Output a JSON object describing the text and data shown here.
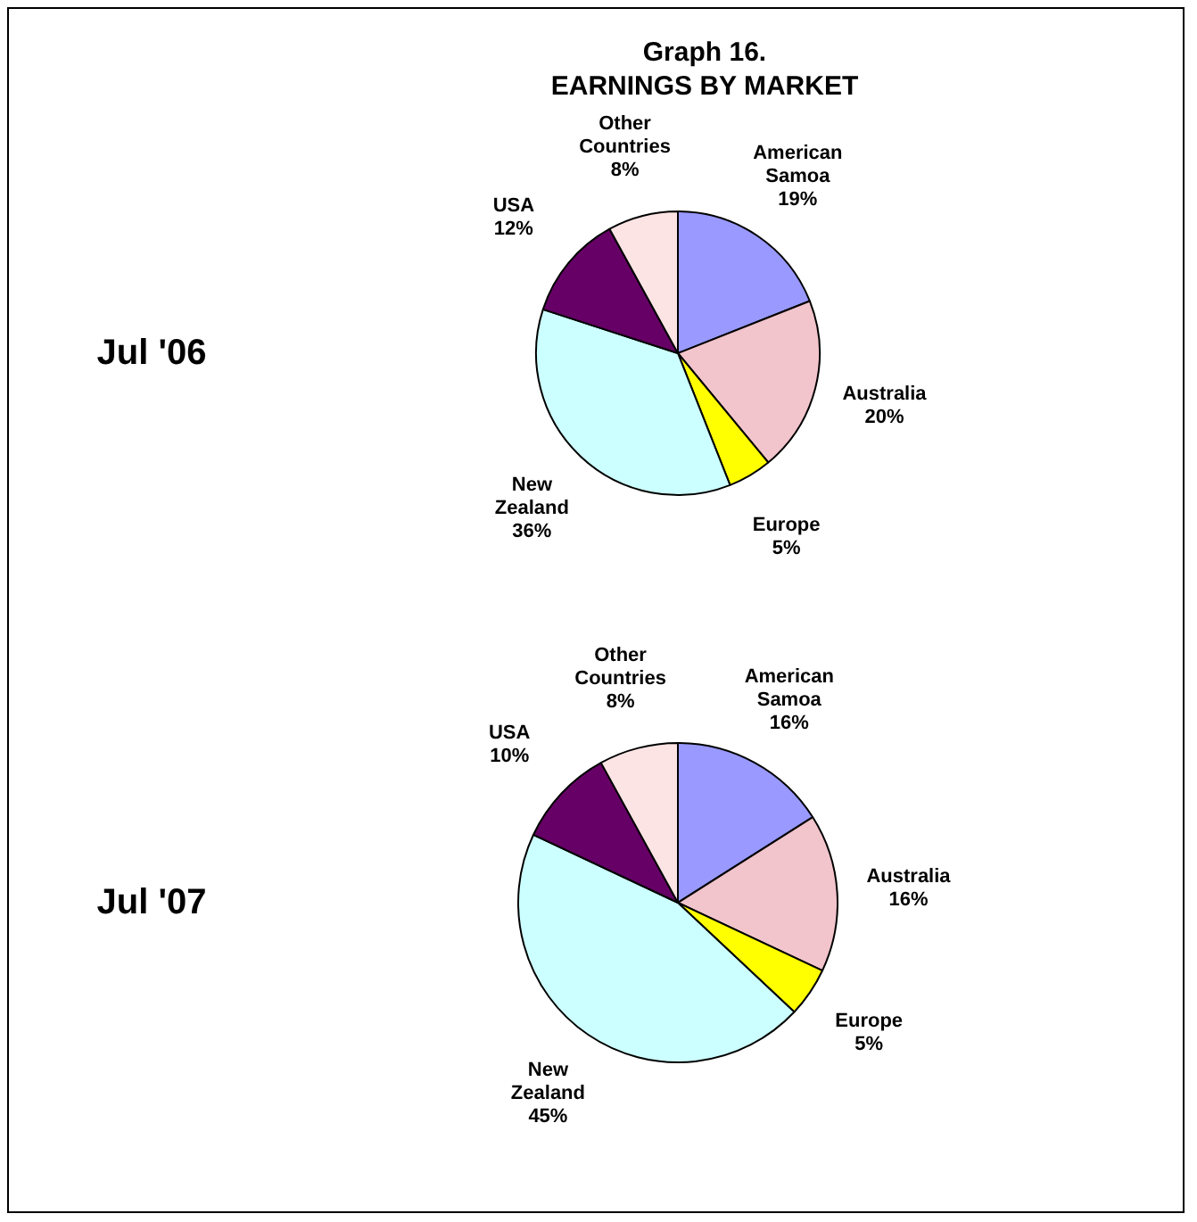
{
  "chart_data": [
    {
      "type": "pie",
      "title": "Graph 16.",
      "subtitle": "EARNINGS BY MARKET",
      "annotations": [
        "Jul '06"
      ],
      "categories": [
        "American Samoa",
        "Australia",
        "Europe",
        "New Zealand",
        "USA",
        "Other Countries"
      ],
      "values": [
        19,
        20,
        5,
        36,
        12,
        8
      ],
      "value_labels": [
        "19%",
        "20%",
        "5%",
        "36%",
        "12%",
        "8%"
      ],
      "colors": [
        "#9999ff",
        "#f2c4cc",
        "#ffff00",
        "#ccffff",
        "#660066",
        "#fde4e4"
      ]
    },
    {
      "type": "pie",
      "annotations": [
        "Jul '07"
      ],
      "categories": [
        "American Samoa",
        "Australia",
        "Europe",
        "New Zealand",
        "USA",
        "Other Countries"
      ],
      "values": [
        16,
        16,
        5,
        45,
        10,
        8
      ],
      "value_labels": [
        "16%",
        "16%",
        "5%",
        "45%",
        "10%",
        "8%"
      ],
      "colors": [
        "#9999ff",
        "#f2c4cc",
        "#ffff00",
        "#ccffff",
        "#660066",
        "#fde4e4"
      ]
    }
  ]
}
